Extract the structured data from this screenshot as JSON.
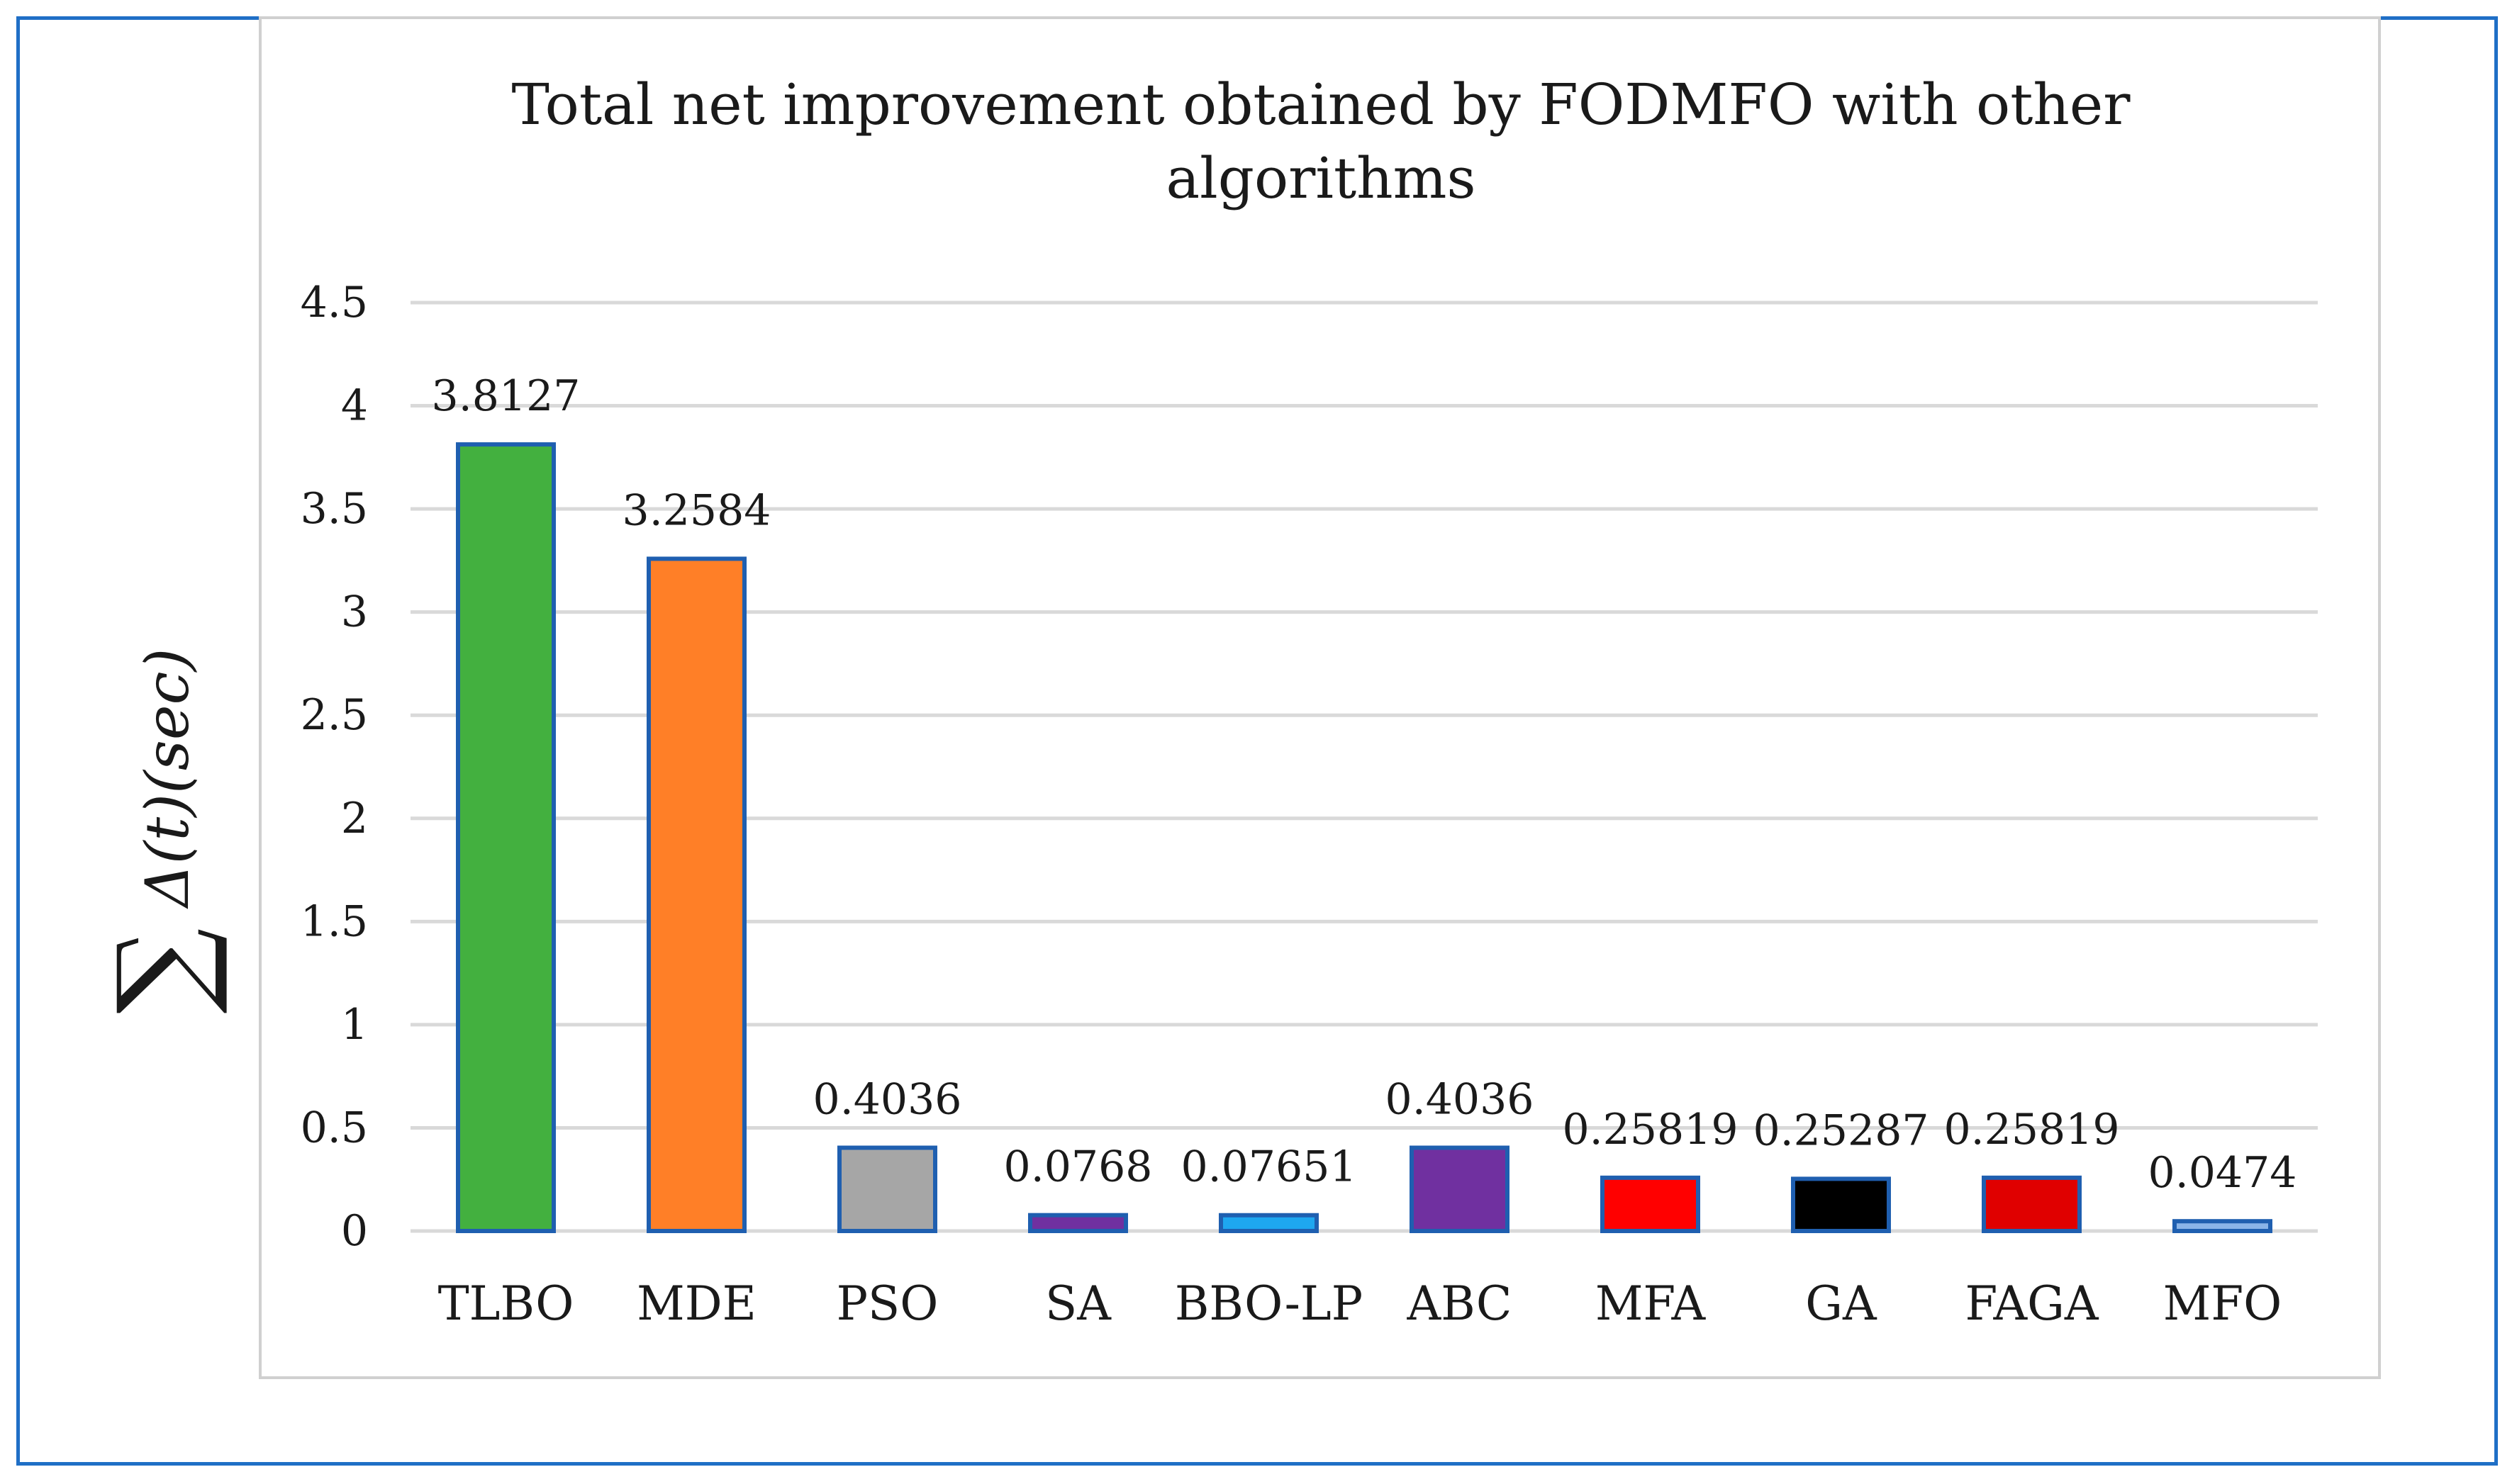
{
  "chart_data": {
    "type": "bar",
    "title": "Total net improvement obtained by FODMFO with other algorithms",
    "title_lines": [
      "Total net improvement obtained by FODMFO with other",
      "algorithms"
    ],
    "xlabel": "",
    "ylabel": "∑Δ(t)(sec)",
    "ylabel_parts": {
      "sum": "∑",
      "expr": "Δ(t)(sec)"
    },
    "ylim": [
      0,
      4.5
    ],
    "yticks": [
      0,
      0.5,
      1,
      1.5,
      2,
      2.5,
      3,
      3.5,
      4,
      4.5
    ],
    "ytick_labels": [
      "0",
      "0.5",
      "1",
      "1.5",
      "2",
      "2.5",
      "3",
      "3.5",
      "4",
      "4.5"
    ],
    "grid": true,
    "categories": [
      "TLBO",
      "MDE",
      "PSO",
      "SA",
      "BBO-LP",
      "ABC",
      "MFA",
      "GA",
      "FAGA",
      "MFO"
    ],
    "values": [
      3.8127,
      3.2584,
      0.4036,
      0.0768,
      0.07651,
      0.4036,
      0.25819,
      0.25287,
      0.25819,
      0.0474
    ],
    "value_labels": [
      "3.8127",
      "3.2584",
      "0.4036",
      "0.0768",
      "0.07651",
      "0.4036",
      "0.25819",
      "0.25287",
      "0.25819",
      "0.0474"
    ],
    "bar_colors": [
      "#43b03f",
      "#ff7f27",
      "#a6a6a6",
      "#7030a0",
      "#1ea7f0",
      "#7030a0",
      "#ff0000",
      "#000000",
      "#e00000",
      "#8ab4e8"
    ],
    "bar_edge_color": "#1f5fb0",
    "grid_color": "#d9d9d9",
    "frame_color": "#1f6fc6"
  }
}
